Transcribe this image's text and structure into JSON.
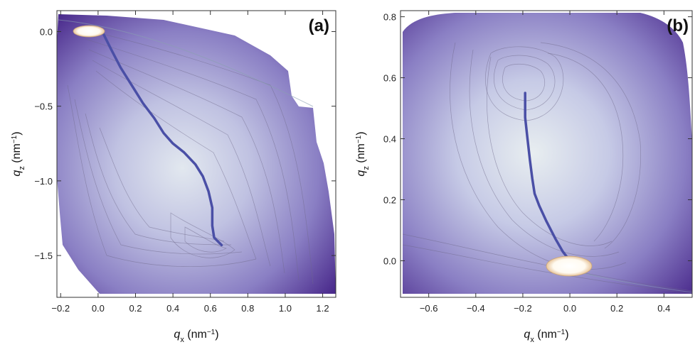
{
  "chart_data": [
    {
      "type": "heatmap",
      "panel_label": "(a)",
      "xlabel_main": "q",
      "xlabel_sub": "x",
      "xlabel_unit": " (nm",
      "ylabel_main": "q",
      "ylabel_sub": "z",
      "ylabel_unit": " (nm",
      "unit_exp": "−1",
      "xlim": [
        -0.22,
        1.27
      ],
      "ylim": [
        -1.78,
        0.14
      ],
      "xticks": [
        -0.2,
        0.0,
        0.2,
        0.4,
        0.6,
        0.8,
        1.0,
        1.2
      ],
      "xtick_labels": [
        "−0.2",
        "0.0",
        "0.2",
        "0.4",
        "0.6",
        "0.8",
        "1.0",
        "1.2"
      ],
      "yticks": [
        -1.5,
        -1.0,
        -0.5,
        0.0
      ],
      "ytick_labels": [
        "−1.5",
        "−1.0",
        "−0.5",
        "0.0"
      ],
      "ridge_line": {
        "x": [
          0.03,
          0.07,
          0.12,
          0.18,
          0.24,
          0.3,
          0.35,
          0.4,
          0.46,
          0.52,
          0.56,
          0.59,
          0.61,
          0.61,
          0.62,
          0.66
        ],
        "y": [
          -0.02,
          -0.12,
          -0.24,
          -0.36,
          -0.48,
          -0.58,
          -0.68,
          -0.75,
          -0.81,
          -0.89,
          -0.97,
          -1.07,
          -1.18,
          -1.3,
          -1.38,
          -1.43
        ]
      },
      "peak": {
        "x": 0.0,
        "y": 0.0
      }
    },
    {
      "type": "heatmap",
      "panel_label": "(b)",
      "xlabel_main": "q",
      "xlabel_sub": "x",
      "xlabel_unit": " (nm",
      "ylabel_main": "q",
      "ylabel_sub": "z",
      "ylabel_unit": " (nm",
      "unit_exp": "−1",
      "xlim": [
        -0.72,
        0.52
      ],
      "ylim": [
        -0.12,
        0.82
      ],
      "xticks": [
        -0.6,
        -0.4,
        -0.2,
        0.0,
        0.2,
        0.4
      ],
      "xtick_labels": [
        "−0.6",
        "−0.4",
        "−0.2",
        "0.0",
        "0.2",
        "0.4"
      ],
      "yticks": [
        0.0,
        0.2,
        0.4,
        0.6,
        0.8
      ],
      "ytick_labels": [
        "0.0",
        "0.2",
        "0.4",
        "0.6",
        "0.8"
      ],
      "ridge_line": {
        "x": [
          -0.19,
          -0.19,
          -0.18,
          -0.17,
          -0.16,
          -0.15,
          -0.13,
          -0.1,
          -0.06,
          -0.03,
          0.0
        ],
        "y": [
          0.55,
          0.47,
          0.4,
          0.33,
          0.27,
          0.22,
          0.18,
          0.13,
          0.07,
          0.03,
          0.0
        ]
      },
      "peak": {
        "x": 0.02,
        "y": -0.01
      }
    }
  ],
  "colors": {
    "outer": "#4a2a8c",
    "mid": "#8f86c6",
    "inner": "#d6dcec",
    "core": "#eef2ee",
    "hot": "#ffffff",
    "ridge": "#4a4fa6",
    "contour": "#6f6a8a"
  }
}
